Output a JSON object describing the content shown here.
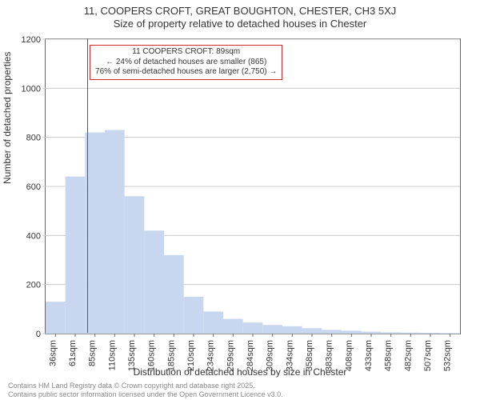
{
  "title": {
    "line1": "11, COOPERS CROFT, GREAT BOUGHTON, CHESTER, CH3 5XJ",
    "line2": "Size of property relative to detached houses in Chester"
  },
  "chart": {
    "type": "histogram",
    "bar_fill": "#c8d7ef",
    "bar_stroke": "#7a9ad0",
    "background_color": "#ffffff",
    "grid_color": "#cccccc",
    "axis_color": "#666666",
    "text_color": "#333333",
    "label_fontsize": 12,
    "tick_fontsize": 11,
    "ylabel": "Number of detached properties",
    "xlabel": "Distribution of detached houses by size in Chester",
    "ylim": [
      0,
      1200
    ],
    "ytick_step": 200,
    "categories": [
      "36sqm",
      "61sqm",
      "85sqm",
      "110sqm",
      "135sqm",
      "160sqm",
      "185sqm",
      "210sqm",
      "234sqm",
      "259sqm",
      "284sqm",
      "309sqm",
      "334sqm",
      "358sqm",
      "383sqm",
      "408sqm",
      "433sqm",
      "458sqm",
      "482sqm",
      "507sqm",
      "532sqm"
    ],
    "values": [
      130,
      640,
      820,
      830,
      560,
      420,
      320,
      150,
      90,
      60,
      45,
      35,
      30,
      22,
      15,
      12,
      8,
      5,
      4,
      3,
      2
    ]
  },
  "marker": {
    "line_color": "#d4272a",
    "box_border_color": "#d4272a",
    "box_bg": "#ffffff",
    "x_category_index": 2,
    "box": {
      "line1": "11 COOPERS CROFT: 89sqm",
      "line2": "← 24% of detached houses are smaller (865)",
      "line3": "76% of semi-detached houses are larger (2,750) →"
    }
  },
  "footer": {
    "line1": "Contains HM Land Registry data © Crown copyright and database right 2025.",
    "line2": "Contains public sector information licensed under the Open Government Licence v3.0."
  }
}
